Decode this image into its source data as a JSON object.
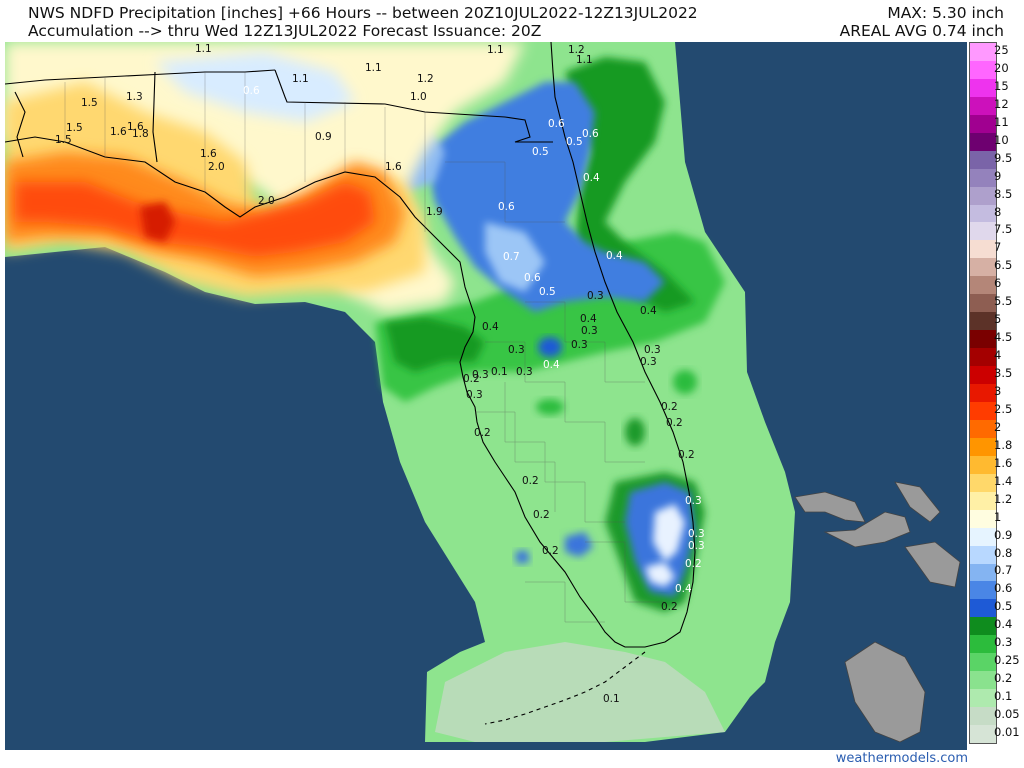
{
  "header": {
    "line1": "NWS NDFD Precipitation [inches] +66 Hours -- between 20Z10JUL2022-12Z13JUL2022",
    "line2": "Accumulation --> thru Wed 12Z13JUL2022   Forecast Issuance: 20Z",
    "max": "MAX: 5.30 inch",
    "areal_avg": "AREAL AVG 0.74 inch"
  },
  "legend": [
    {
      "label": "25",
      "color": "#ff99ff"
    },
    {
      "label": "20",
      "color": "#ff66ff"
    },
    {
      "label": "15",
      "color": "#ee33ee"
    },
    {
      "label": "12",
      "color": "#cc11bb"
    },
    {
      "label": "11",
      "color": "#a00090"
    },
    {
      "label": "10",
      "color": "#6e0070"
    },
    {
      "label": "9.5",
      "color": "#7a64a8"
    },
    {
      "label": "9",
      "color": "#9482bc"
    },
    {
      "label": "8.5",
      "color": "#aea0cc"
    },
    {
      "label": "8",
      "color": "#c4bce0"
    },
    {
      "label": "7.5",
      "color": "#e0d8ec"
    },
    {
      "label": "7",
      "color": "#f6ddd2"
    },
    {
      "label": "6.5",
      "color": "#d6b0a4"
    },
    {
      "label": "6",
      "color": "#b48678"
    },
    {
      "label": "5.5",
      "color": "#8e5e52"
    },
    {
      "label": "5",
      "color": "#5c3228"
    },
    {
      "label": "4.5",
      "color": "#7a0000"
    },
    {
      "label": "4",
      "color": "#a40000"
    },
    {
      "label": "3.5",
      "color": "#cc0000"
    },
    {
      "label": "3",
      "color": "#e81800"
    },
    {
      "label": "2.5",
      "color": "#ff3c00"
    },
    {
      "label": "2",
      "color": "#ff6a00"
    },
    {
      "label": "1.8",
      "color": "#ff9500"
    },
    {
      "label": "1.6",
      "color": "#ffba30"
    },
    {
      "label": "1.4",
      "color": "#ffd86a"
    },
    {
      "label": "1.2",
      "color": "#fff0a6"
    },
    {
      "label": "1",
      "color": "#fffde0"
    },
    {
      "label": "0.9",
      "color": "#e6f4ff"
    },
    {
      "label": "0.8",
      "color": "#b8d8ff"
    },
    {
      "label": "0.7",
      "color": "#84b4f2"
    },
    {
      "label": "0.6",
      "color": "#4a86e6"
    },
    {
      "label": "0.5",
      "color": "#1e5ad6"
    },
    {
      "label": "0.4",
      "color": "#0f8c1e"
    },
    {
      "label": "0.3",
      "color": "#2cbc3c"
    },
    {
      "label": "0.25",
      "color": "#5ad466"
    },
    {
      "label": "0.2",
      "color": "#8ae28e"
    },
    {
      "label": "0.1",
      "color": "#aeeaae"
    },
    {
      "label": "0.05",
      "color": "#c6dcc6"
    },
    {
      "label": "0.01",
      "color": "#d6e4d6"
    }
  ],
  "contour_labels": [
    {
      "text": "1.1"
    },
    {
      "text": "0.6"
    },
    {
      "text": "1.1"
    },
    {
      "text": "1.1"
    },
    {
      "text": "1.2"
    },
    {
      "text": "1.0"
    },
    {
      "text": "1.1"
    },
    {
      "text": "1.2"
    },
    {
      "text": "1.1"
    },
    {
      "text": "1.5"
    },
    {
      "text": "1.3"
    },
    {
      "text": "1.5"
    },
    {
      "text": "1.6"
    },
    {
      "text": "1.5"
    },
    {
      "text": "1.6"
    },
    {
      "text": "1.8"
    },
    {
      "text": "0.9"
    },
    {
      "text": "1.6"
    },
    {
      "text": "2.0"
    },
    {
      "text": "1.6"
    },
    {
      "text": "2.0"
    },
    {
      "text": "1.9"
    },
    {
      "text": "0.6"
    },
    {
      "text": "0.5"
    },
    {
      "text": "0.5"
    },
    {
      "text": "0.6"
    },
    {
      "text": "0.4"
    },
    {
      "text": "0.6"
    },
    {
      "text": "0.4"
    },
    {
      "text": "0.7"
    },
    {
      "text": "0.6"
    },
    {
      "text": "0.5"
    },
    {
      "text": "0.3"
    },
    {
      "text": "0.4"
    },
    {
      "text": "0.3"
    },
    {
      "text": "0.4"
    },
    {
      "text": "0.4"
    },
    {
      "text": "0.3"
    },
    {
      "text": "0.3"
    },
    {
      "text": "0.3"
    },
    {
      "text": "0.3"
    },
    {
      "text": "0.4"
    },
    {
      "text": "0.2"
    },
    {
      "text": "0.1"
    },
    {
      "text": "0.3"
    },
    {
      "text": "0.3"
    },
    {
      "text": "0.3"
    },
    {
      "text": "0.2"
    },
    {
      "text": "0.2"
    },
    {
      "text": "0.2"
    },
    {
      "text": "0.2"
    },
    {
      "text": "0.2"
    },
    {
      "text": "0.2"
    },
    {
      "text": "0.2"
    },
    {
      "text": "0.3"
    },
    {
      "text": "0.3"
    },
    {
      "text": "0.3"
    },
    {
      "text": "0.2"
    },
    {
      "text": "0.4"
    },
    {
      "text": "0.2"
    },
    {
      "text": "0.1"
    }
  ],
  "branding": "weathermodels.com"
}
